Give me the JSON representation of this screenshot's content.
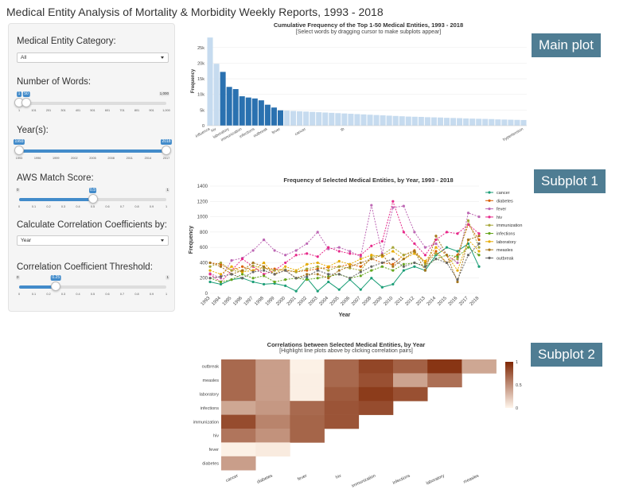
{
  "app": {
    "title": "Medical Entity Analysis of Mortality & Morbidity Weekly Reports, 1993 - 2018"
  },
  "sidebar": {
    "category_label": "Medical Entity Category:",
    "category_value": "All",
    "words_label": "Number of Words:",
    "words_slider": {
      "min": 1,
      "max": 1000,
      "low": 1,
      "high": 50,
      "low_label": "1",
      "high_label": "50",
      "max_label": "1,000",
      "ticks": [
        "1",
        "101",
        "201",
        "301",
        "401",
        "501",
        "601",
        "701",
        "801",
        "901",
        "1,000"
      ]
    },
    "year_label": "Year(s):",
    "year_slider": {
      "min": 1993,
      "max": 2018,
      "low": 1993,
      "high": 2018,
      "low_label": "1993",
      "high_label": "2018",
      "ticks": [
        "1993",
        "1996",
        "1999",
        "2002",
        "2005",
        "2008",
        "2011",
        "2014",
        "2017"
      ]
    },
    "aws_label": "AWS Match Score:",
    "aws_slider": {
      "min": 0,
      "max": 1,
      "value": 0.5,
      "value_label": "0.5",
      "min_label": "0",
      "max_label": "1",
      "ticks": [
        "0",
        "0.1",
        "0.2",
        "0.3",
        "0.4",
        "0.5",
        "0.6",
        "0.7",
        "0.8",
        "0.9",
        "1"
      ]
    },
    "corr_by_label": "Calculate Correlation Coefficients by:",
    "corr_by_value": "Year",
    "threshold_label": "Correlation Coefficient Threshold:",
    "threshold_slider": {
      "min": 0,
      "max": 1,
      "value": 0.25,
      "value_label": "0.25",
      "min_label": "0",
      "max_label": "1",
      "ticks": [
        "0",
        "0.1",
        "0.2",
        "0.3",
        "0.4",
        "0.5",
        "0.6",
        "0.7",
        "0.8",
        "0.9",
        "1"
      ]
    }
  },
  "callouts": {
    "main": "Main plot",
    "sub1": "Subplot 1",
    "sub2": "Subplot 2"
  },
  "chart_data": [
    {
      "type": "bar",
      "title": "Cumulative Frequency of the Top 1-50 Medical Entities, 1993 - 2018",
      "subtitle": "[Select words by dragging cursor to make subplots appear]",
      "ylabel": "Frequency",
      "ylim": [
        0,
        28500
      ],
      "yticks": [
        "0",
        "5k",
        "10k",
        "15k",
        "20k",
        "25k"
      ],
      "ytick_values": [
        0,
        5000,
        10000,
        15000,
        20000,
        25000
      ],
      "values": [
        28200,
        19800,
        17200,
        12400,
        11700,
        9400,
        9000,
        8700,
        8100,
        6700,
        5800,
        4900,
        4800,
        4700,
        4600,
        4500,
        4400,
        4300,
        4200,
        4100,
        4000,
        3900,
        3800,
        3700,
        3600,
        3500,
        3400,
        3300,
        3200,
        3100,
        3000,
        2900,
        2850,
        2800,
        2700,
        2650,
        2600,
        2500,
        2450,
        2400,
        2300,
        2250,
        2200,
        2150,
        2100,
        2000,
        1950,
        1900,
        1850,
        1800
      ],
      "selected": [
        2,
        3,
        4,
        5,
        6,
        7,
        8,
        9,
        10,
        11
      ],
      "xlabels_visible": [
        "influenza",
        "hiv",
        "",
        "laboratory",
        "",
        "immunization",
        "",
        "infections",
        "",
        "outbreak",
        "",
        "fever",
        "",
        "",
        "",
        "cancer",
        "",
        "",
        "",
        "",
        "",
        "tb",
        "",
        "",
        "",
        "",
        "",
        "",
        "",
        "",
        "",
        "",
        "",
        "",
        "",
        "",
        "",
        "",
        "",
        "",
        "",
        "",
        "",
        "",
        "",
        "",
        "",
        "",
        "",
        "hypertension"
      ],
      "colors": {
        "selected": "#2a71b0",
        "unselected": "#c6dbef"
      }
    },
    {
      "type": "line",
      "title": "Frequency of Selected Medical Entities, by Year, 1993 - 2018",
      "xlabel": "Year",
      "ylabel": "Frequency",
      "ylim": [
        0,
        1400
      ],
      "yticks": [
        0,
        200,
        400,
        600,
        800,
        1000,
        1200,
        1400
      ],
      "x": [
        1993,
        1994,
        1995,
        1996,
        1997,
        1998,
        1999,
        2000,
        2001,
        2002,
        2003,
        2004,
        2005,
        2006,
        2007,
        2008,
        2009,
        2010,
        2011,
        2012,
        2013,
        2014,
        2015,
        2016,
        2017,
        2018
      ],
      "series": [
        {
          "name": "cancer",
          "color": "#1b9e77",
          "values": [
            150,
            120,
            180,
            200,
            150,
            120,
            130,
            100,
            30,
            200,
            30,
            150,
            50,
            180,
            50,
            200,
            80,
            120,
            300,
            350,
            300,
            500,
            600,
            550,
            650,
            350
          ]
        },
        {
          "name": "diabetes",
          "color": "#d95f02",
          "values": [
            400,
            380,
            300,
            350,
            300,
            330,
            320,
            300,
            280,
            300,
            320,
            340,
            350,
            380,
            350,
            450,
            400,
            380,
            500,
            560,
            400,
            550,
            400,
            500,
            900,
            700
          ]
        },
        {
          "name": "fever",
          "color": "#bd68b4",
          "values": [
            260,
            200,
            430,
            460,
            560,
            700,
            560,
            500,
            560,
            650,
            800,
            580,
            600,
            550,
            480,
            1150,
            520,
            1120,
            1140,
            800,
            600,
            650,
            500,
            400,
            1050,
            1000
          ]
        },
        {
          "name": "hiv",
          "color": "#e7298a",
          "values": [
            250,
            150,
            300,
            450,
            350,
            250,
            300,
            400,
            500,
            520,
            480,
            600,
            550,
            520,
            500,
            620,
            680,
            1200,
            800,
            650,
            500,
            700,
            800,
            780,
            900,
            780
          ]
        },
        {
          "name": "immunization",
          "color": "#a6a637",
          "values": [
            350,
            400,
            300,
            280,
            360,
            330,
            300,
            310,
            280,
            320,
            350,
            300,
            350,
            330,
            300,
            480,
            500,
            600,
            500,
            550,
            380,
            520,
            400,
            450,
            950,
            600
          ]
        },
        {
          "name": "infections",
          "color": "#66a61e",
          "values": [
            200,
            150,
            180,
            250,
            200,
            230,
            150,
            180,
            200,
            180,
            200,
            220,
            250,
            200,
            230,
            300,
            350,
            300,
            380,
            400,
            350,
            450,
            500,
            480,
            600,
            500
          ]
        },
        {
          "name": "laboratory",
          "color": "#e6ab02",
          "values": [
            300,
            250,
            350,
            280,
            300,
            400,
            250,
            350,
            300,
            380,
            400,
            350,
            420,
            380,
            450,
            500,
            480,
            550,
            450,
            520,
            420,
            600,
            500,
            300,
            700,
            550
          ]
        },
        {
          "name": "measles",
          "color": "#a6761d",
          "values": [
            400,
            350,
            250,
            300,
            400,
            350,
            250,
            300,
            200,
            250,
            250,
            200,
            300,
            350,
            400,
            450,
            500,
            350,
            450,
            550,
            300,
            750,
            500,
            150,
            700,
            750
          ]
        },
        {
          "name": "outbreak",
          "color": "#666666",
          "values": [
            200,
            220,
            250,
            200,
            280,
            300,
            250,
            300,
            200,
            220,
            300,
            250,
            250,
            200,
            280,
            350,
            400,
            450,
            350,
            400,
            350,
            450,
            400,
            180,
            500,
            650
          ]
        }
      ]
    },
    {
      "type": "heatmap",
      "title": "Correlations between Selected Medical Entities, by Year",
      "subtitle": "[Highlight line plots above by clicking correlation pairs]",
      "x": [
        "cancer",
        "diabetes",
        "fever",
        "hiv",
        "immunization",
        "infections",
        "laboratory",
        "measles"
      ],
      "y": [
        "outbreak",
        "measles",
        "laboratory",
        "infections",
        "immunization",
        "hiv",
        "fever",
        "diabetes"
      ],
      "z": [
        [
          0.68,
          0.42,
          0.02,
          0.68,
          0.85,
          0.72,
          0.93,
          0.38
        ],
        [
          0.68,
          0.42,
          0.03,
          0.68,
          0.8,
          0.4,
          0.65,
          null
        ],
        [
          0.68,
          0.42,
          0.03,
          0.75,
          0.9,
          0.8,
          null,
          null
        ],
        [
          0.38,
          0.45,
          0.68,
          0.78,
          0.82,
          null,
          null,
          null
        ],
        [
          0.82,
          0.55,
          0.7,
          0.78,
          null,
          null,
          null,
          null
        ],
        [
          0.62,
          0.48,
          0.7,
          null,
          null,
          null,
          null,
          null
        ],
        [
          0.02,
          0.05,
          null,
          null,
          null,
          null,
          null,
          null
        ],
        [
          0.42,
          null,
          null,
          null,
          null,
          null,
          null,
          null
        ]
      ],
      "colorbar": {
        "ticks": [
          "1",
          "0.5",
          "0"
        ]
      }
    }
  ]
}
